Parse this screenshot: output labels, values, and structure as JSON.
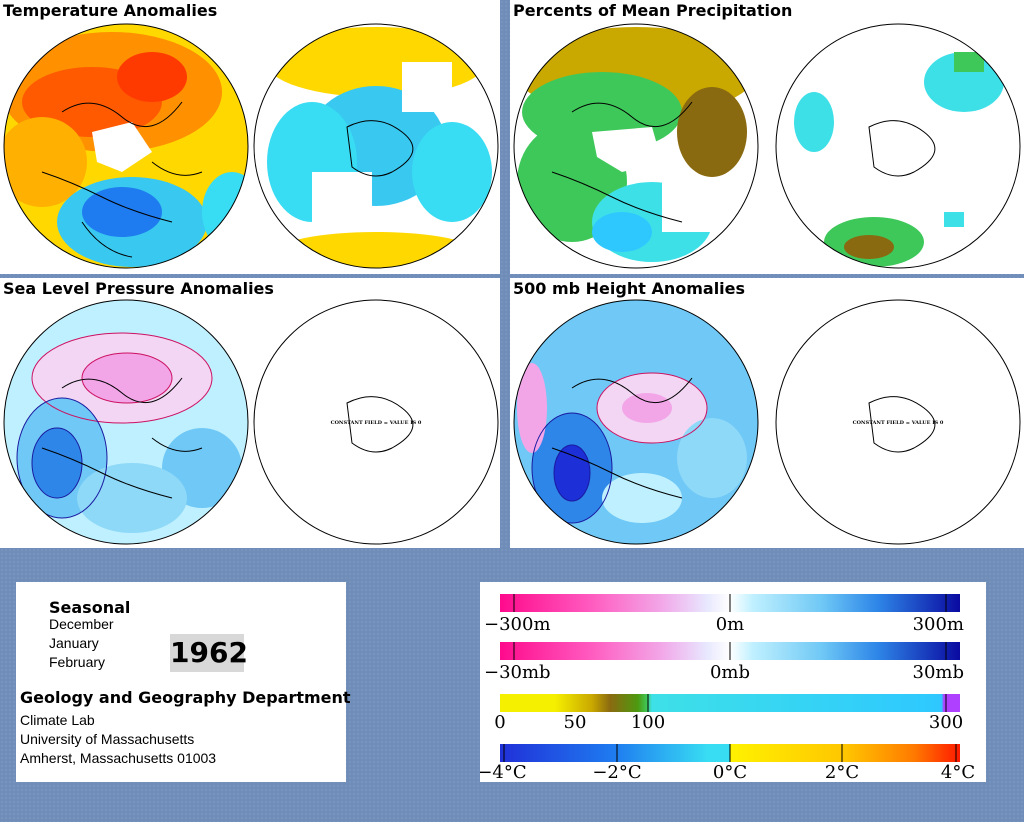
{
  "panels": {
    "temperature": {
      "title": "Temperature Anomalies"
    },
    "precipitation": {
      "title": "Percents of Mean Precipitation"
    },
    "pressure": {
      "title": "Sea Level Pressure Anomalies",
      "constant_field": "CONSTANT FIELD = VALUE IS 0"
    },
    "height": {
      "title": "500 mb Height Anomalies",
      "constant_field": "CONSTANT FIELD = VALUE IS 0"
    }
  },
  "info": {
    "season_label": "Seasonal",
    "months": [
      "December",
      "January",
      "February"
    ],
    "year": "1962",
    "department": "Geology and Geography Department",
    "lab": "Climate Lab",
    "university": "University of Massachusetts",
    "address": "Amherst, Massachusetts 01003"
  },
  "legend": {
    "height": {
      "labels": [
        "−300m",
        "0m",
        "300m"
      ]
    },
    "pressure": {
      "labels": [
        "−30mb",
        "0mb",
        "30mb"
      ]
    },
    "precip": {
      "labels": [
        "0",
        "50",
        "100",
        "300"
      ]
    },
    "temperature": {
      "labels": [
        "−4°C",
        "−2°C",
        "0°C",
        "2°C",
        "4°C"
      ]
    }
  },
  "colors": {
    "anomaly_scale": [
      "#ff0a8c",
      "#ff5cc0",
      "#f2a6e8",
      "#dce0ff",
      "#ffffff",
      "#bff0ff",
      "#6fc8f5",
      "#2e86e8",
      "#1d2fd6",
      "#0a0aa0"
    ],
    "precip_scale": [
      "#f5ef00",
      "#c9a800",
      "#8a6a10",
      "#4d9a10",
      "#3fc85a",
      "#3ee0e8",
      "#2ec8ff",
      "#b040ff"
    ],
    "temperature_scale": [
      "#2030d8",
      "#1f7cf0",
      "#22b4f7",
      "#38dcf3",
      "#fff200",
      "#ffc600",
      "#ff9200",
      "#ff5a00",
      "#ff1a00"
    ]
  }
}
